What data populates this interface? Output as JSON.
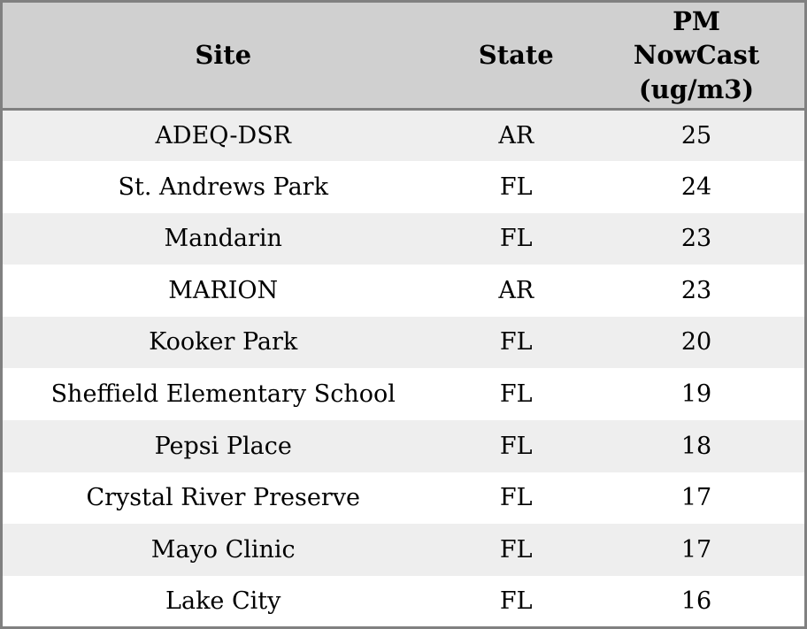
{
  "table": {
    "columns": [
      {
        "label": "Site"
      },
      {
        "label": "State"
      },
      {
        "label": "PM NowCast (ug/m3)"
      }
    ],
    "rows": [
      {
        "site": "ADEQ-DSR",
        "state": "AR",
        "pm": "25"
      },
      {
        "site": "St. Andrews Park",
        "state": "FL",
        "pm": "24"
      },
      {
        "site": "Mandarin",
        "state": "FL",
        "pm": "23"
      },
      {
        "site": "MARION",
        "state": "AR",
        "pm": "23"
      },
      {
        "site": "Kooker Park",
        "state": "FL",
        "pm": "20"
      },
      {
        "site": "Sheffield Elementary School",
        "state": "FL",
        "pm": "19"
      },
      {
        "site": "Pepsi Place",
        "state": "FL",
        "pm": "18"
      },
      {
        "site": "Crystal River Preserve",
        "state": "FL",
        "pm": "17"
      },
      {
        "site": "Mayo Clinic",
        "state": "FL",
        "pm": "17"
      },
      {
        "site": "Lake City",
        "state": "FL",
        "pm": "16"
      }
    ]
  },
  "colors": {
    "header_bg": "#d0d0d0",
    "row_alt_bg": "#eeeeee",
    "row_bg": "#ffffff",
    "border": "#808080",
    "text": "#000000"
  }
}
